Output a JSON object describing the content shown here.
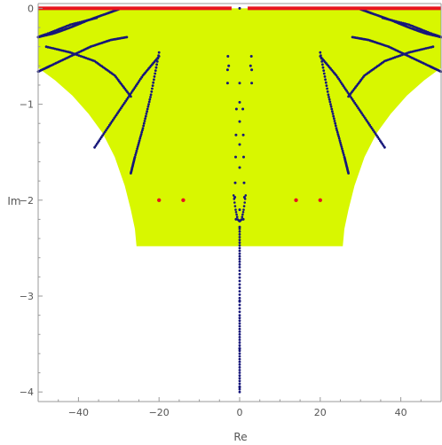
{
  "chart_data": {
    "type": "scatter",
    "title": "",
    "xlabel": "Re",
    "ylabel": "Im",
    "xlim": [
      -50,
      50
    ],
    "ylim": [
      -4.1,
      0.05
    ],
    "xticks": [
      -40,
      -20,
      0,
      20,
      40
    ],
    "xtick_labels": [
      "−40",
      "−20",
      "0",
      "20",
      "40"
    ],
    "yticks": [
      0,
      -1,
      -2,
      -3,
      -4
    ],
    "ytick_labels": [
      "0",
      "−1",
      "−2",
      "−3",
      "−4"
    ],
    "grid": false,
    "legend": "none",
    "colors": {
      "region": "#d8f700",
      "curves": "#16167a",
      "red_points": "#e8141e",
      "axis": "#999999"
    },
    "region": {
      "name": "",
      "outline": [
        [
          -50,
          0
        ],
        [
          50,
          0
        ],
        [
          50,
          -0.62
        ],
        [
          45.8,
          -0.75
        ],
        [
          41.5,
          -0.91
        ],
        [
          37.5,
          -1.1
        ],
        [
          34,
          -1.3
        ],
        [
          31,
          -1.55
        ],
        [
          28.5,
          -1.85
        ],
        [
          27,
          -2.1
        ],
        [
          26,
          -2.3
        ],
        [
          25.6,
          -2.48
        ],
        [
          -25.6,
          -2.48
        ],
        [
          -26,
          -2.3
        ],
        [
          -27,
          -2.1
        ],
        [
          -28.5,
          -1.85
        ],
        [
          -31,
          -1.55
        ],
        [
          -34,
          -1.3
        ],
        [
          -37.5,
          -1.1
        ],
        [
          -41.5,
          -0.91
        ],
        [
          -45.8,
          -0.75
        ],
        [
          -50,
          -0.62
        ]
      ]
    },
    "curves": [
      {
        "x": [
          -30,
          -34,
          -38,
          -42,
          -46,
          -50
        ],
        "y": [
          -0.01,
          -0.07,
          -0.13,
          -0.2,
          -0.26,
          -0.3
        ]
      },
      {
        "x": [
          -28,
          -32,
          -37,
          -42,
          -47,
          -50
        ],
        "y": [
          -0.3,
          -0.33,
          -0.4,
          -0.5,
          -0.6,
          -0.66
        ]
      },
      {
        "x": [
          -35.5,
          -42,
          -48,
          -50
        ],
        "y": [
          -0.1,
          -0.17,
          -0.27,
          -0.3
        ]
      },
      {
        "x": [
          -27,
          -31,
          -36,
          -42,
          -48
        ],
        "y": [
          -0.92,
          -0.7,
          -0.55,
          -0.46,
          -0.4
        ]
      },
      {
        "x": [
          -20,
          -22,
          -24,
          -26,
          -27
        ],
        "y": [
          -0.46,
          -0.9,
          -1.25,
          -1.55,
          -1.72
        ]
      },
      {
        "x": [
          -20,
          -24,
          -28,
          -32,
          -36
        ],
        "y": [
          -0.5,
          -0.7,
          -0.95,
          -1.2,
          -1.45
        ]
      },
      {
        "x": [
          30,
          34,
          38,
          42,
          46,
          50
        ],
        "y": [
          -0.01,
          -0.07,
          -0.13,
          -0.2,
          -0.26,
          -0.3
        ]
      },
      {
        "x": [
          28,
          32,
          37,
          42,
          47,
          50
        ],
        "y": [
          -0.3,
          -0.33,
          -0.4,
          -0.5,
          -0.6,
          -0.66
        ]
      },
      {
        "x": [
          35.5,
          42,
          48,
          50
        ],
        "y": [
          -0.1,
          -0.17,
          -0.27,
          -0.3
        ]
      },
      {
        "x": [
          27,
          31,
          36,
          42,
          48
        ],
        "y": [
          -0.92,
          -0.7,
          -0.55,
          -0.46,
          -0.4
        ]
      },
      {
        "x": [
          20,
          22,
          24,
          26,
          27
        ],
        "y": [
          -0.46,
          -0.9,
          -1.25,
          -1.55,
          -1.72
        ]
      },
      {
        "x": [
          20,
          24,
          28,
          32,
          36
        ],
        "y": [
          -0.5,
          -0.7,
          -0.95,
          -1.2,
          -1.45
        ]
      },
      {
        "x": [
          0,
          0,
          0,
          0,
          0
        ],
        "y": [
          -2.3,
          -2.7,
          -3.2,
          -3.6,
          -4.0
        ]
      }
    ],
    "imag_axis_points": {
      "x": [
        0,
        -2.9,
        2.9,
        -2.7,
        2.7,
        0,
        0,
        -0.8,
        0.8,
        0,
        -0.9,
        0.9,
        0,
        -1.0,
        1.0,
        0,
        -1.1,
        1.1,
        -1.2,
        1.2,
        0,
        -0.9,
        0.9,
        0,
        0,
        0,
        0,
        -3.0,
        3.0,
        -3.0,
        3.0
      ],
      "y": [
        0,
        -0.5,
        -0.5,
        -0.6,
        -0.6,
        -0.78,
        -0.98,
        -1.05,
        -1.05,
        -1.18,
        -1.32,
        -1.32,
        -1.42,
        -1.55,
        -1.55,
        -1.66,
        -1.82,
        -1.82,
        -1.97,
        -1.97,
        -2.1,
        -2.2,
        -2.2,
        -2.28,
        -3.05,
        -3.55,
        -3.95,
        -0.64,
        -0.64,
        -0.78,
        -0.78
      ]
    },
    "cusp": {
      "x": [
        -1.5,
        -1,
        -0.5,
        0,
        0.5,
        1,
        1.5
      ],
      "y": [
        -1.95,
        -2.1,
        -2.2,
        -2.22,
        -2.2,
        -2.1,
        -1.95
      ]
    },
    "red_points": {
      "x": [
        -20,
        -14,
        14,
        20
      ],
      "y": [
        -2,
        -2,
        -2,
        -2
      ]
    },
    "red_segments": [
      {
        "x": [
          -50,
          -2
        ],
        "y": [
          0,
          0
        ]
      },
      {
        "x": [
          2,
          50
        ],
        "y": [
          0,
          0
        ]
      }
    ]
  }
}
